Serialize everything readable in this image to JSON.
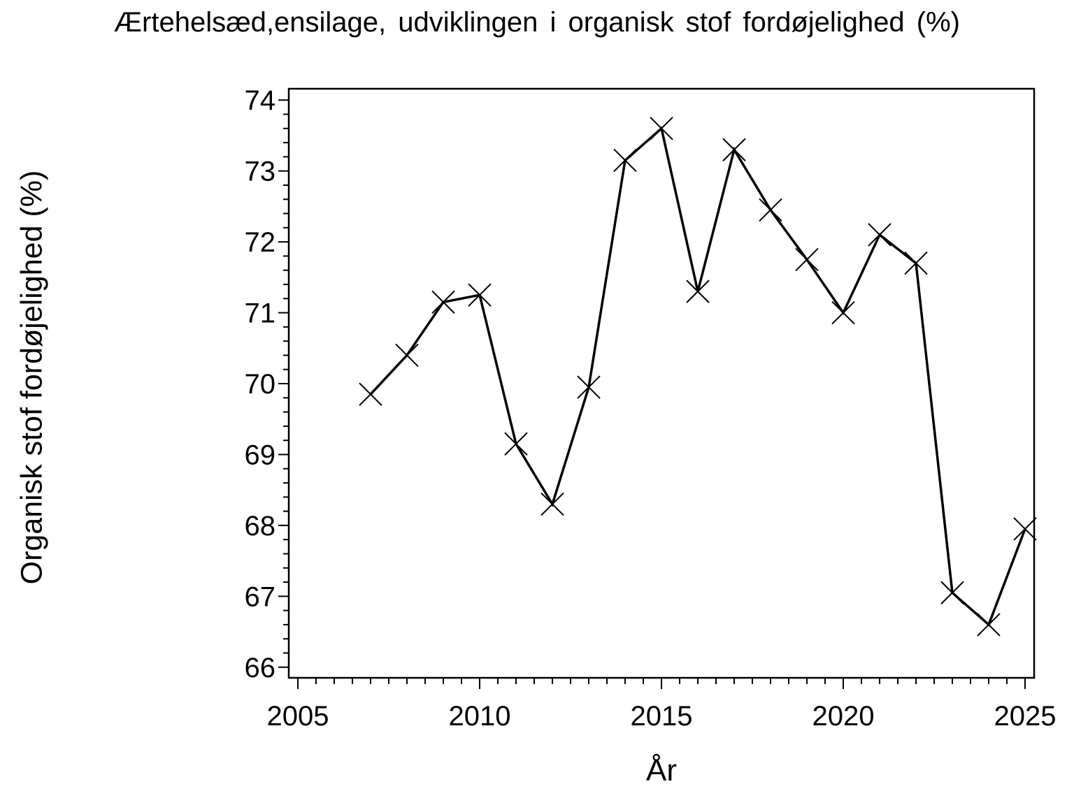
{
  "chart_data": {
    "type": "line",
    "title": "Ærtehelsæd,ensilage, udviklingen i organisk stof fordøjelighed (%)",
    "xlabel": "År",
    "ylabel": "Organisk stof fordøjelighed (%)",
    "x": [
      2007,
      2008,
      2009,
      2010,
      2011,
      2012,
      2013,
      2014,
      2015,
      2016,
      2017,
      2018,
      2019,
      2020,
      2021,
      2022,
      2023,
      2024,
      2025
    ],
    "y": [
      69.85,
      70.4,
      71.15,
      71.25,
      69.15,
      68.3,
      69.95,
      73.15,
      73.6,
      71.3,
      73.3,
      72.45,
      71.75,
      71.0,
      72.1,
      71.7,
      67.05,
      66.6,
      67.95
    ],
    "xlim": [
      2004.75,
      2025.25
    ],
    "ylim": [
      65.85,
      74.16
    ],
    "x_major_ticks": [
      2005,
      2010,
      2015,
      2020,
      2025
    ],
    "x_minor_step": 0.5,
    "y_major_ticks": [
      66,
      67,
      68,
      69,
      70,
      71,
      72,
      73,
      74
    ],
    "y_minor_step": 0.2,
    "marker": "x-cross",
    "line_color": "#000000",
    "background": "#ffffff",
    "grid": false,
    "legend": false
  }
}
